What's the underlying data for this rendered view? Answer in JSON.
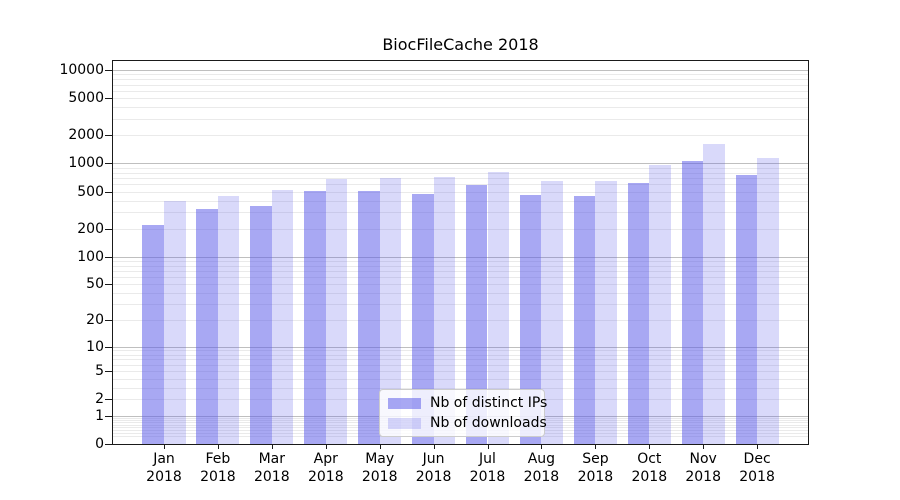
{
  "figure": {
    "title": "BiocFileCache 2018",
    "background_color": "#ffffff"
  },
  "chart_data": {
    "type": "bar",
    "title": "BiocFileCache 2018",
    "categories": [
      "Jan 2018",
      "Feb 2018",
      "Mar 2018",
      "Apr 2018",
      "May 2018",
      "Jun 2018",
      "Jul 2018",
      "Aug 2018",
      "Sep 2018",
      "Oct 2018",
      "Nov 2018",
      "Dec 2018"
    ],
    "month_labels": [
      "Jan",
      "Feb",
      "Mar",
      "Apr",
      "May",
      "Jun",
      "Jul",
      "Aug",
      "Sep",
      "Oct",
      "Nov",
      "Dec"
    ],
    "year_label": "2018",
    "series": [
      {
        "name": "Nb of distinct IPs",
        "color": "rgba(90,90,232,0.53)",
        "values": [
          219,
          322,
          350,
          509,
          512,
          470,
          590,
          455,
          452,
          620,
          1060,
          755
        ]
      },
      {
        "name": "Nb of downloads",
        "color": "rgba(90,90,232,0.23)",
        "values": [
          397,
          446,
          518,
          690,
          694,
          718,
          815,
          650,
          642,
          965,
          1600,
          1140
        ]
      }
    ],
    "xlabel": "",
    "ylabel": "",
    "yscale": "log1p",
    "ylim": [
      0,
      12600
    ],
    "y_ticks": [
      10000,
      5000,
      2000,
      1000,
      500,
      200,
      100,
      50,
      20,
      10,
      5,
      2,
      1,
      0
    ],
    "grid": true,
    "legend_position": "lower center"
  },
  "legend": {
    "items": [
      {
        "label": "Nb of distinct IPs",
        "color": "rgba(90,90,232,0.53)"
      },
      {
        "label": "Nb of downloads",
        "color": "rgba(90,90,232,0.23)"
      }
    ]
  },
  "colors": {
    "axis": "#1a1a1a",
    "grid_major": "#bfbfbf",
    "grid_minor": "#eaeaea",
    "bar_fill_base": "#5a5ae8"
  }
}
